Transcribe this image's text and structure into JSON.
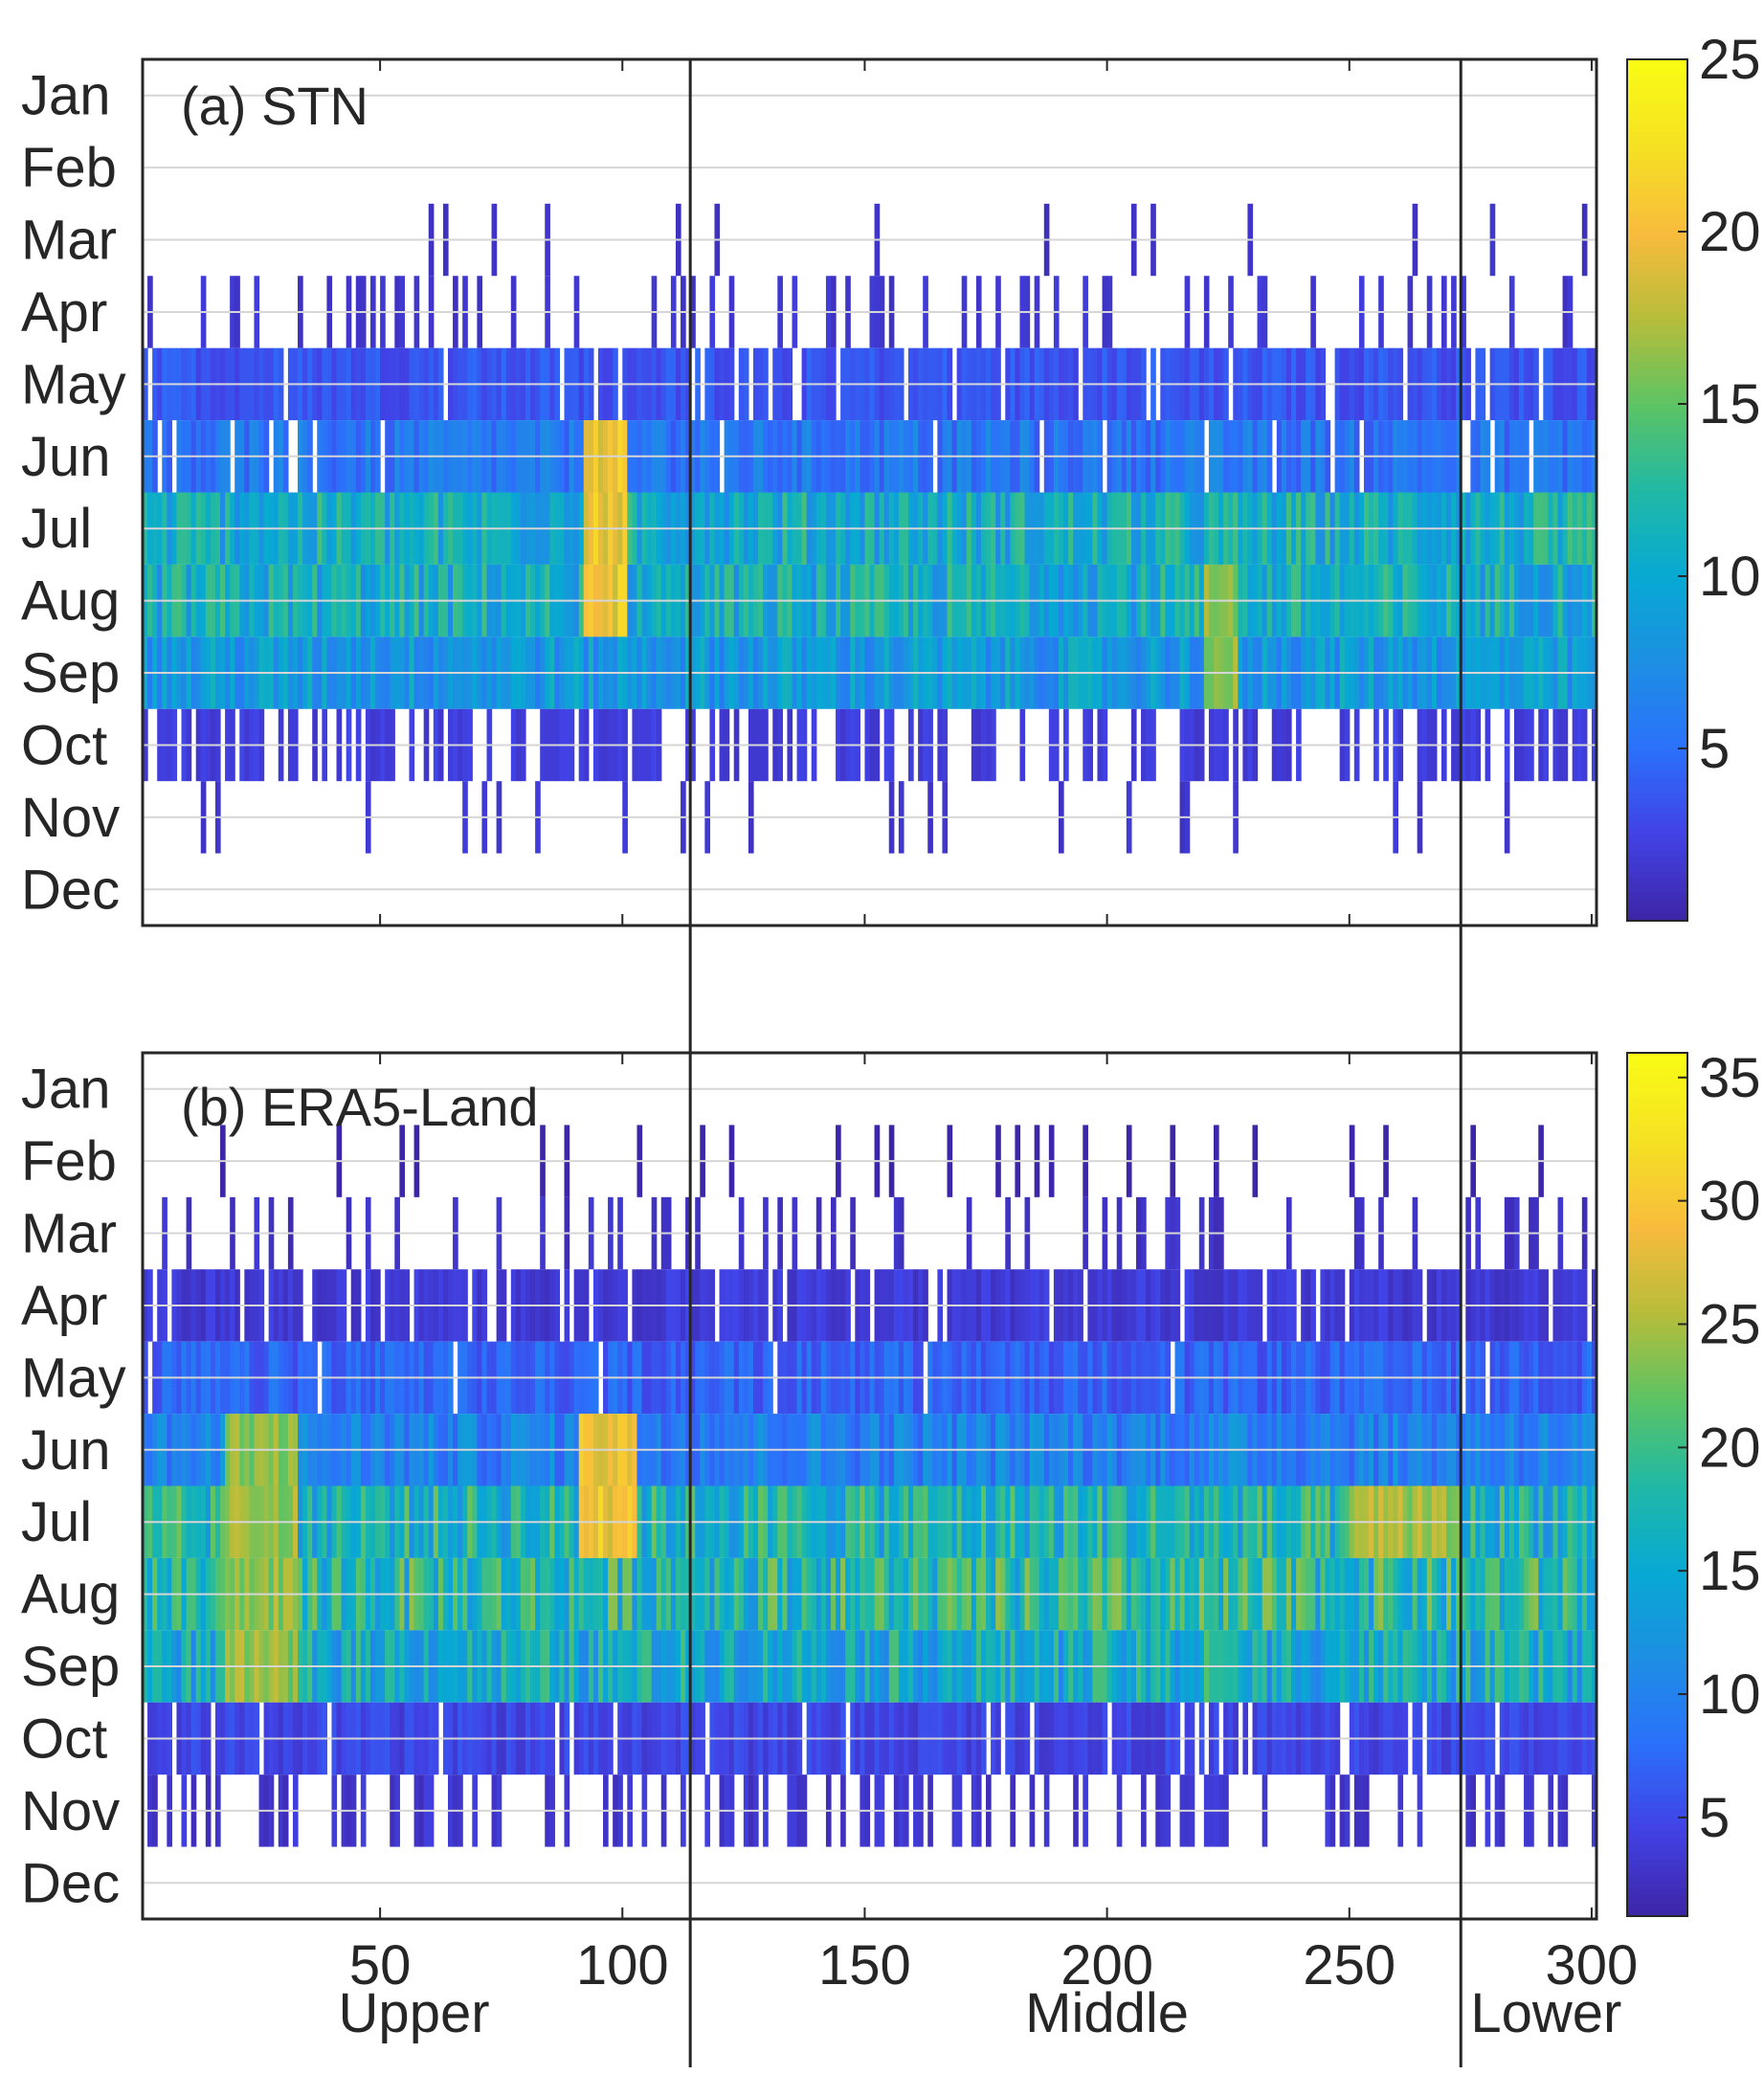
{
  "chart_data": {
    "type": "heatmap",
    "shared": {
      "x_axis": {
        "range": [
          1,
          300
        ],
        "ticks": [
          50,
          100,
          150,
          200,
          250,
          300
        ]
      },
      "regions": [
        {
          "label": "Upper",
          "range": [
            1,
            114
          ]
        },
        {
          "label": "Middle",
          "range": [
            114,
            273
          ]
        },
        {
          "label": "Lower",
          "range": [
            273,
            300
          ]
        }
      ],
      "boundaries": [
        114,
        273
      ],
      "months": [
        "Jan",
        "Feb",
        "Mar",
        "Apr",
        "May",
        "Jun",
        "Jul",
        "Aug",
        "Sep",
        "Oct",
        "Nov",
        "Dec"
      ],
      "colormap": [
        "#3e26a8",
        "#4143e7",
        "#2b71fb",
        "#1d8fe2",
        "#07a9d3",
        "#20b9a5",
        "#5cc364",
        "#b6bd3a",
        "#f8bb3d",
        "#f5e024",
        "#f9fb15"
      ]
    },
    "panels": [
      {
        "title": "(a) STN",
        "colorbar": {
          "min": 0,
          "max": 25,
          "ticks": [
            5,
            10,
            15,
            20,
            25
          ]
        },
        "month_fill": [
          0,
          0,
          0.05,
          0.22,
          0.9,
          0.93,
          1,
          1,
          1,
          0.55,
          0.07,
          0
        ],
        "month_base": [
          0,
          0,
          1.2,
          1.5,
          3.5,
          5.5,
          10.5,
          10.5,
          8.5,
          2.0,
          1.5,
          0
        ],
        "hotspots": [
          {
            "x": [
              92,
              100
            ],
            "months": [
              "Jun",
              "Jul",
              "Aug"
            ],
            "value": 21
          },
          {
            "x": [
              220,
              226
            ],
            "months": [
              "Aug",
              "Sep"
            ],
            "value": 17
          }
        ]
      },
      {
        "title": "(b) ERA5-Land",
        "colorbar": {
          "min": 1,
          "max": 36,
          "ticks": [
            5,
            10,
            15,
            20,
            25,
            30,
            35
          ]
        },
        "month_fill": [
          0,
          0.07,
          0.18,
          0.87,
          0.97,
          1,
          1,
          1,
          1,
          0.9,
          0.35,
          0
        ],
        "month_base": [
          0,
          0,
          2.5,
          3.5,
          7.0,
          10.0,
          17.0,
          18.0,
          15.5,
          4.5,
          3.0,
          0
        ],
        "hotspots": [
          {
            "x": [
              91,
              102
            ],
            "months": [
              "Jun",
              "Jul"
            ],
            "value": 31
          },
          {
            "x": [
              18,
              32
            ],
            "months": [
              "Jun",
              "Jul",
              "Aug",
              "Sep"
            ],
            "value": 25
          },
          {
            "x": [
              250,
              272
            ],
            "months": [
              "Jul"
            ],
            "value": 26
          },
          {
            "x": [
              220,
              226
            ],
            "months": [
              "Sep"
            ],
            "value": 21
          }
        ]
      }
    ]
  }
}
